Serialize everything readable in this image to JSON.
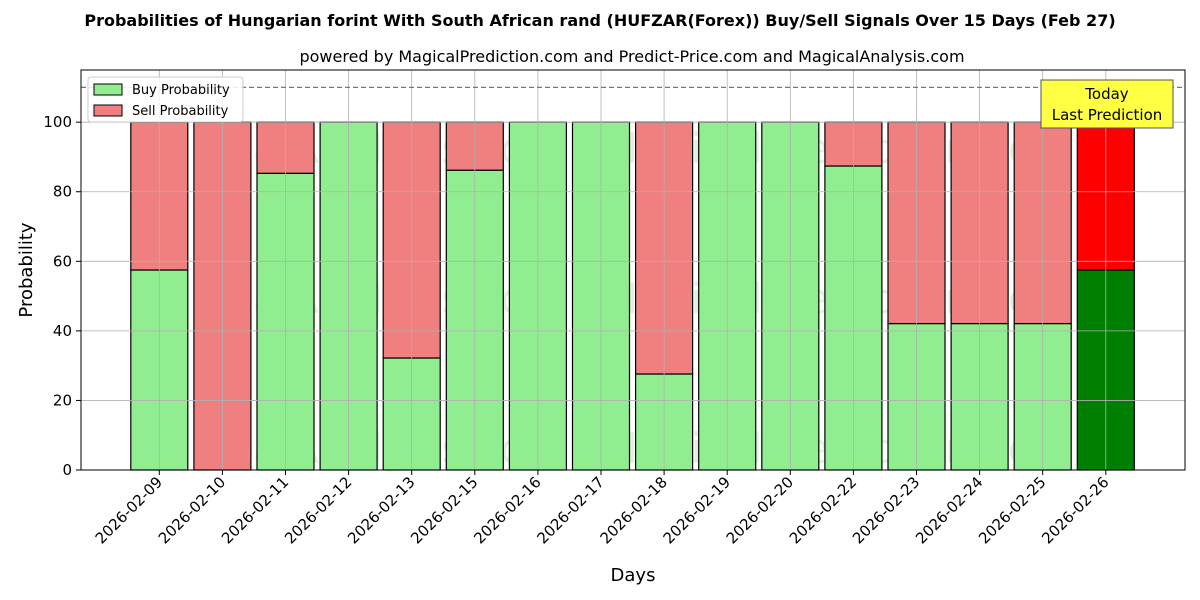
{
  "chart_data": {
    "type": "bar",
    "title": "Probabilities of Hungarian forint With South African rand (HUFZAR(Forex)) Buy/Sell Signals Over 15 Days (Feb 27)",
    "subtitle": "powered by MagicalPrediction.com and Predict-Price.com and MagicalAnalysis.com",
    "xlabel": "Days",
    "ylabel": "Probability",
    "ylim": [
      0,
      115
    ],
    "yticks": [
      0,
      20,
      40,
      60,
      80,
      100
    ],
    "reference_line": 110,
    "grid": true,
    "legend_position": "top-left",
    "categories": [
      "2026-02-09",
      "2026-02-10",
      "2026-02-11",
      "2026-02-12",
      "2026-02-13",
      "2026-02-15",
      "2026-02-16",
      "2026-02-17",
      "2026-02-18",
      "2026-02-19",
      "2026-02-20",
      "2026-02-22",
      "2026-02-23",
      "2026-02-24",
      "2026-02-25",
      "2026-02-26"
    ],
    "series": [
      {
        "name": "Buy Probability",
        "color": "#90ee90",
        "values": [
          57.5,
          0,
          85.3,
          100,
          32.2,
          86.2,
          100,
          100,
          27.6,
          100,
          100,
          87.4,
          42.1,
          42.1,
          42.1,
          57.5
        ]
      },
      {
        "name": "Sell Probability",
        "color": "#f08080",
        "values": [
          42.5,
          100,
          14.7,
          0,
          67.8,
          13.8,
          0,
          0,
          72.4,
          0,
          0,
          12.6,
          57.9,
          57.9,
          57.9,
          42.5
        ]
      }
    ],
    "highlight": {
      "index": 15,
      "buy_color": "#008000",
      "sell_color": "#ff0000"
    },
    "annotation": {
      "lines": [
        "Today",
        "Last Prediction"
      ],
      "color": "#ffff44"
    },
    "watermarks": [
      "MagicalAnalysis.com",
      "MagicalPrediction.com"
    ]
  }
}
